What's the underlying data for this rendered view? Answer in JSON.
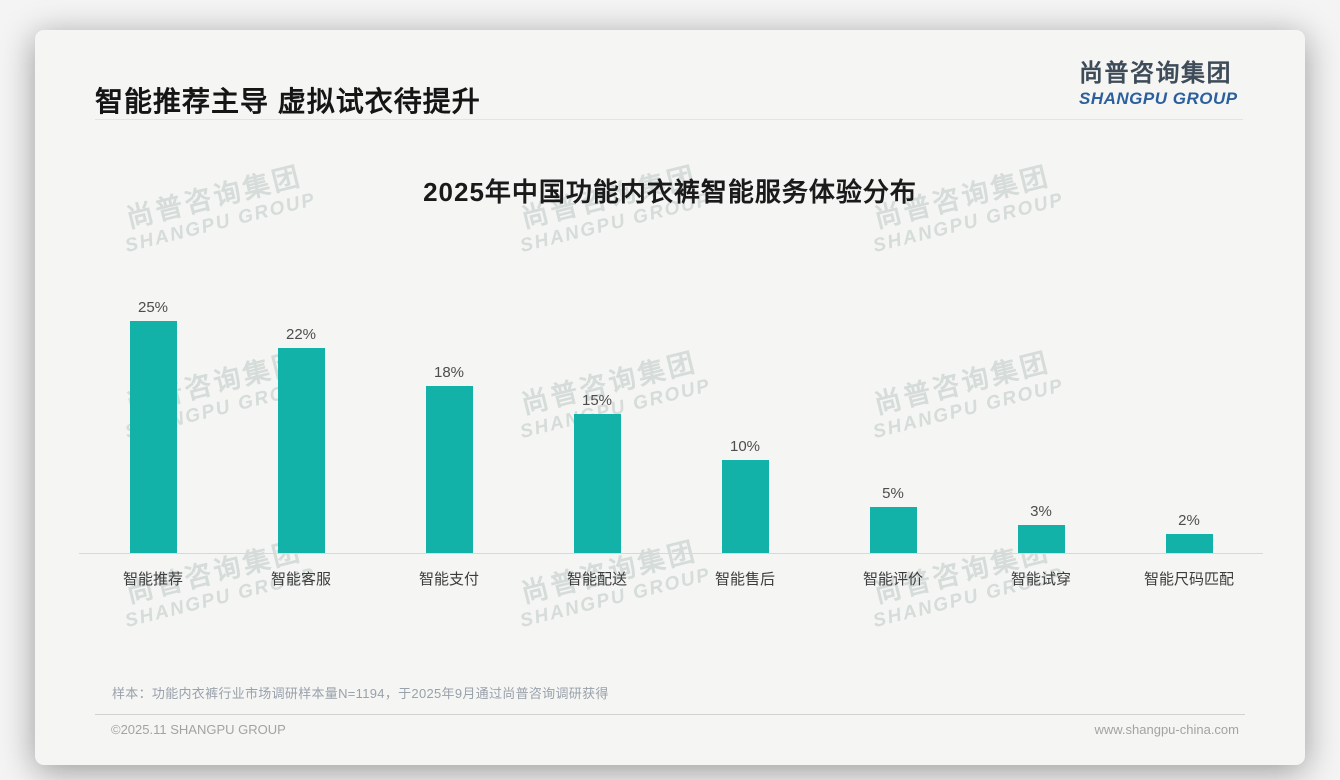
{
  "header": {
    "title": "智能推荐主导 虚拟试衣待提升"
  },
  "logo": {
    "cn": "尚普咨询集团",
    "en": "SHANGPU GROUP"
  },
  "watermark": {
    "cn": "尚普咨询集团",
    "en": "SHANGPU GROUP"
  },
  "colors": {
    "bar": "#12b2a9",
    "logo_blue": "#2b5f9e",
    "logo_dark": "#3e4b59"
  },
  "chart_data": {
    "type": "bar",
    "title": "2025年中国功能内衣裤智能服务体验分布",
    "categories": [
      "智能推荐",
      "智能客服",
      "智能支付",
      "智能配送",
      "智能售后",
      "智能评价",
      "智能试穿",
      "智能尺码匹配"
    ],
    "values": [
      25,
      22,
      18,
      15,
      10,
      5,
      3,
      2
    ],
    "value_labels": [
      "25%",
      "22%",
      "18%",
      "15%",
      "10%",
      "5%",
      "3%",
      "2%"
    ],
    "unit": "%",
    "ylim": [
      0,
      28
    ],
    "grid": false,
    "legend": "none",
    "bar_color": "#12b2a9"
  },
  "note": "样本：功能内衣裤行业市场调研样本量N=1194，于2025年9月通过尚普咨询调研获得",
  "footer": {
    "left": "©2025.11 SHANGPU GROUP",
    "right": "www.shangpu-china.com"
  }
}
